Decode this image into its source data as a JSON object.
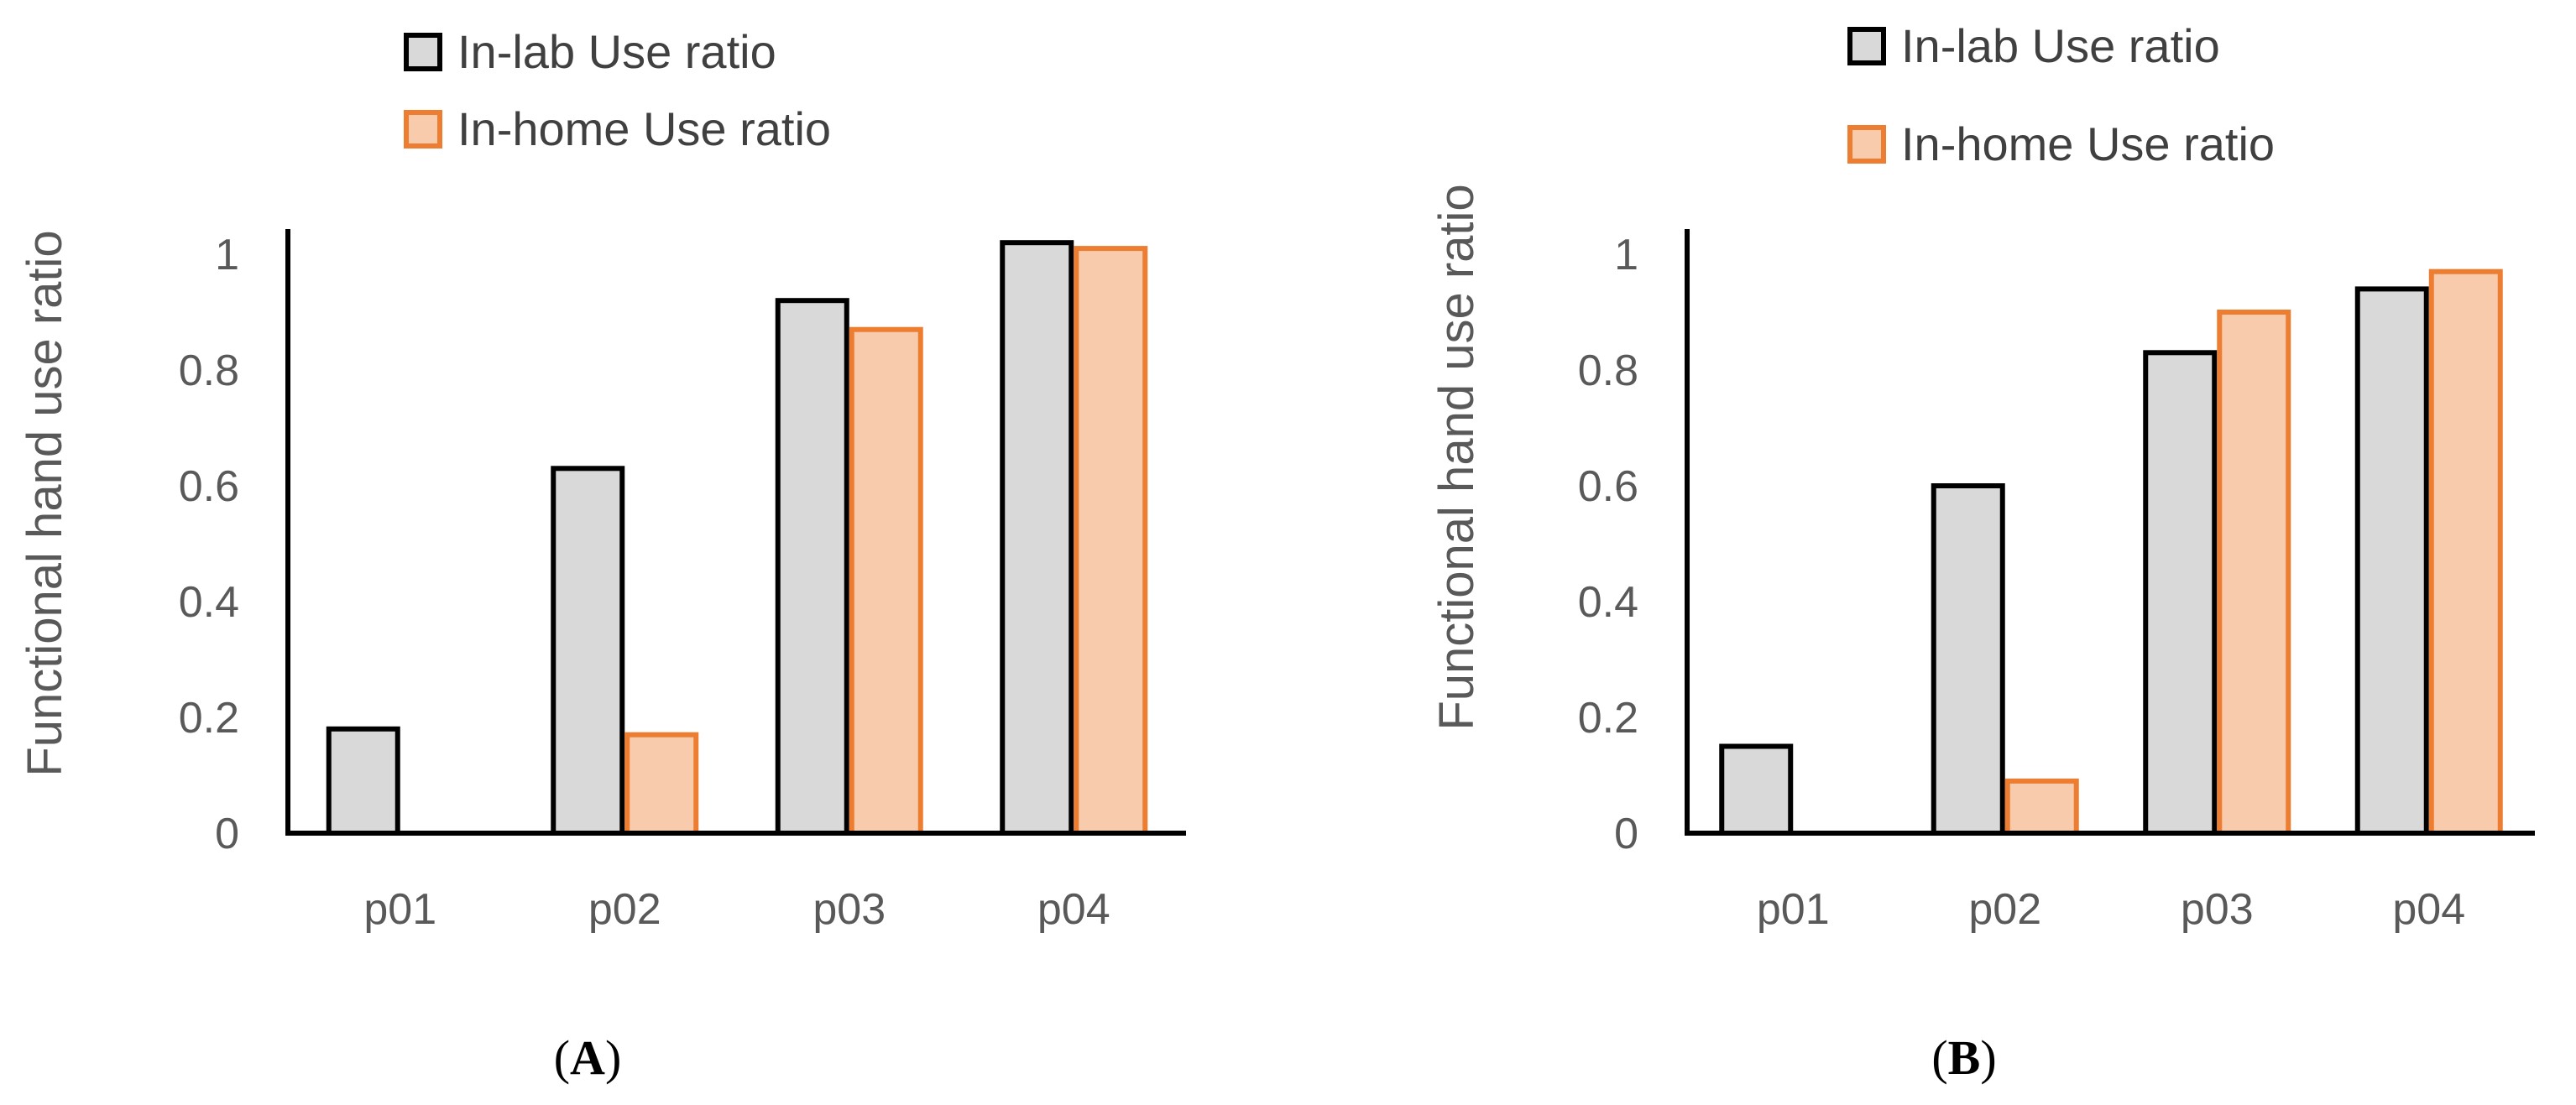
{
  "colors": {
    "inlab_fill": "#d9d9d9",
    "inlab_stroke": "#000000",
    "inhome_fill": "#f8cbad",
    "inhome_stroke": "#ed7d31",
    "text": "#595959",
    "axis": "#000000"
  },
  "chart_data": [
    {
      "type": "bar",
      "panel": "A",
      "panel_label": {
        "open": "(",
        "letter": "A",
        "close": ")"
      },
      "categories": [
        "p01",
        "p02",
        "p03",
        "p04"
      ],
      "series": [
        {
          "name": "In-lab Use ratio",
          "values": [
            0.18,
            0.63,
            0.92,
            1.02
          ]
        },
        {
          "name": "In-home Use ratio",
          "values": [
            0.0,
            0.17,
            0.87,
            1.01
          ]
        }
      ],
      "title": "",
      "xlabel": "",
      "ylabel": "Functional hand use ratio",
      "ylim": [
        0,
        1.05
      ],
      "yticks": [
        "0",
        "0.2",
        "0.4",
        "0.6",
        "0.8",
        "1"
      ],
      "grid": false,
      "legend_position": "top"
    },
    {
      "type": "bar",
      "panel": "B",
      "panel_label": {
        "open": "(",
        "letter": "B",
        "close": ")"
      },
      "categories": [
        "p01",
        "p02",
        "p03",
        "p04"
      ],
      "series": [
        {
          "name": "In-lab Use ratio",
          "values": [
            0.15,
            0.6,
            0.83,
            0.94
          ]
        },
        {
          "name": "In-home Use ratio",
          "values": [
            0.0,
            0.09,
            0.9,
            0.97
          ]
        }
      ],
      "title": "",
      "xlabel": "",
      "ylabel": "Functional hand use ratio",
      "ylim": [
        0,
        1.05
      ],
      "yticks": [
        "0",
        "0.2",
        "0.4",
        "0.6",
        "0.8",
        "1"
      ],
      "grid": false,
      "legend_position": "top"
    }
  ]
}
